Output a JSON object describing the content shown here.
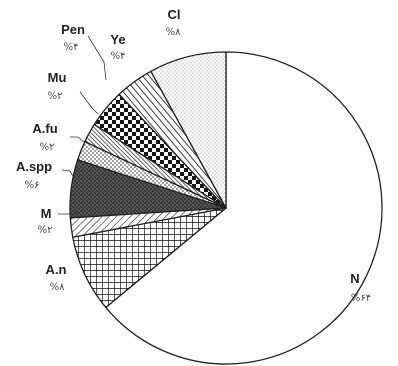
{
  "chart_data": {
    "type": "pie",
    "title": "",
    "slices": [
      {
        "label": "N",
        "percent_label": "%۶۴",
        "value": 64,
        "pattern": "blank"
      },
      {
        "label": "A.n",
        "percent_label": "%۸",
        "value": 8,
        "pattern": "crosshatch"
      },
      {
        "label": "M",
        "percent_label": "%۲",
        "value": 2,
        "pattern": "diag-sparse"
      },
      {
        "label": "A.spp",
        "percent_label": "%۶",
        "value": 6,
        "pattern": "dark-dots"
      },
      {
        "label": "A.fu",
        "percent_label": "%۲",
        "value": 2,
        "pattern": "dots"
      },
      {
        "label": "Mu",
        "percent_label": "%۲",
        "value": 2,
        "pattern": "diag-dense"
      },
      {
        "label": "Ye",
        "percent_label": "%۴",
        "value": 4,
        "pattern": "checker"
      },
      {
        "label": "Pen",
        "percent_label": "%۴",
        "value": 4,
        "pattern": "diagonal"
      },
      {
        "label": "Cl",
        "percent_label": "%۸",
        "value": 8,
        "pattern": "light-dots"
      }
    ],
    "start_angle": "top",
    "direction": "clockwise"
  },
  "colors": {
    "stroke": "#222222",
    "background": "#ffffff"
  }
}
